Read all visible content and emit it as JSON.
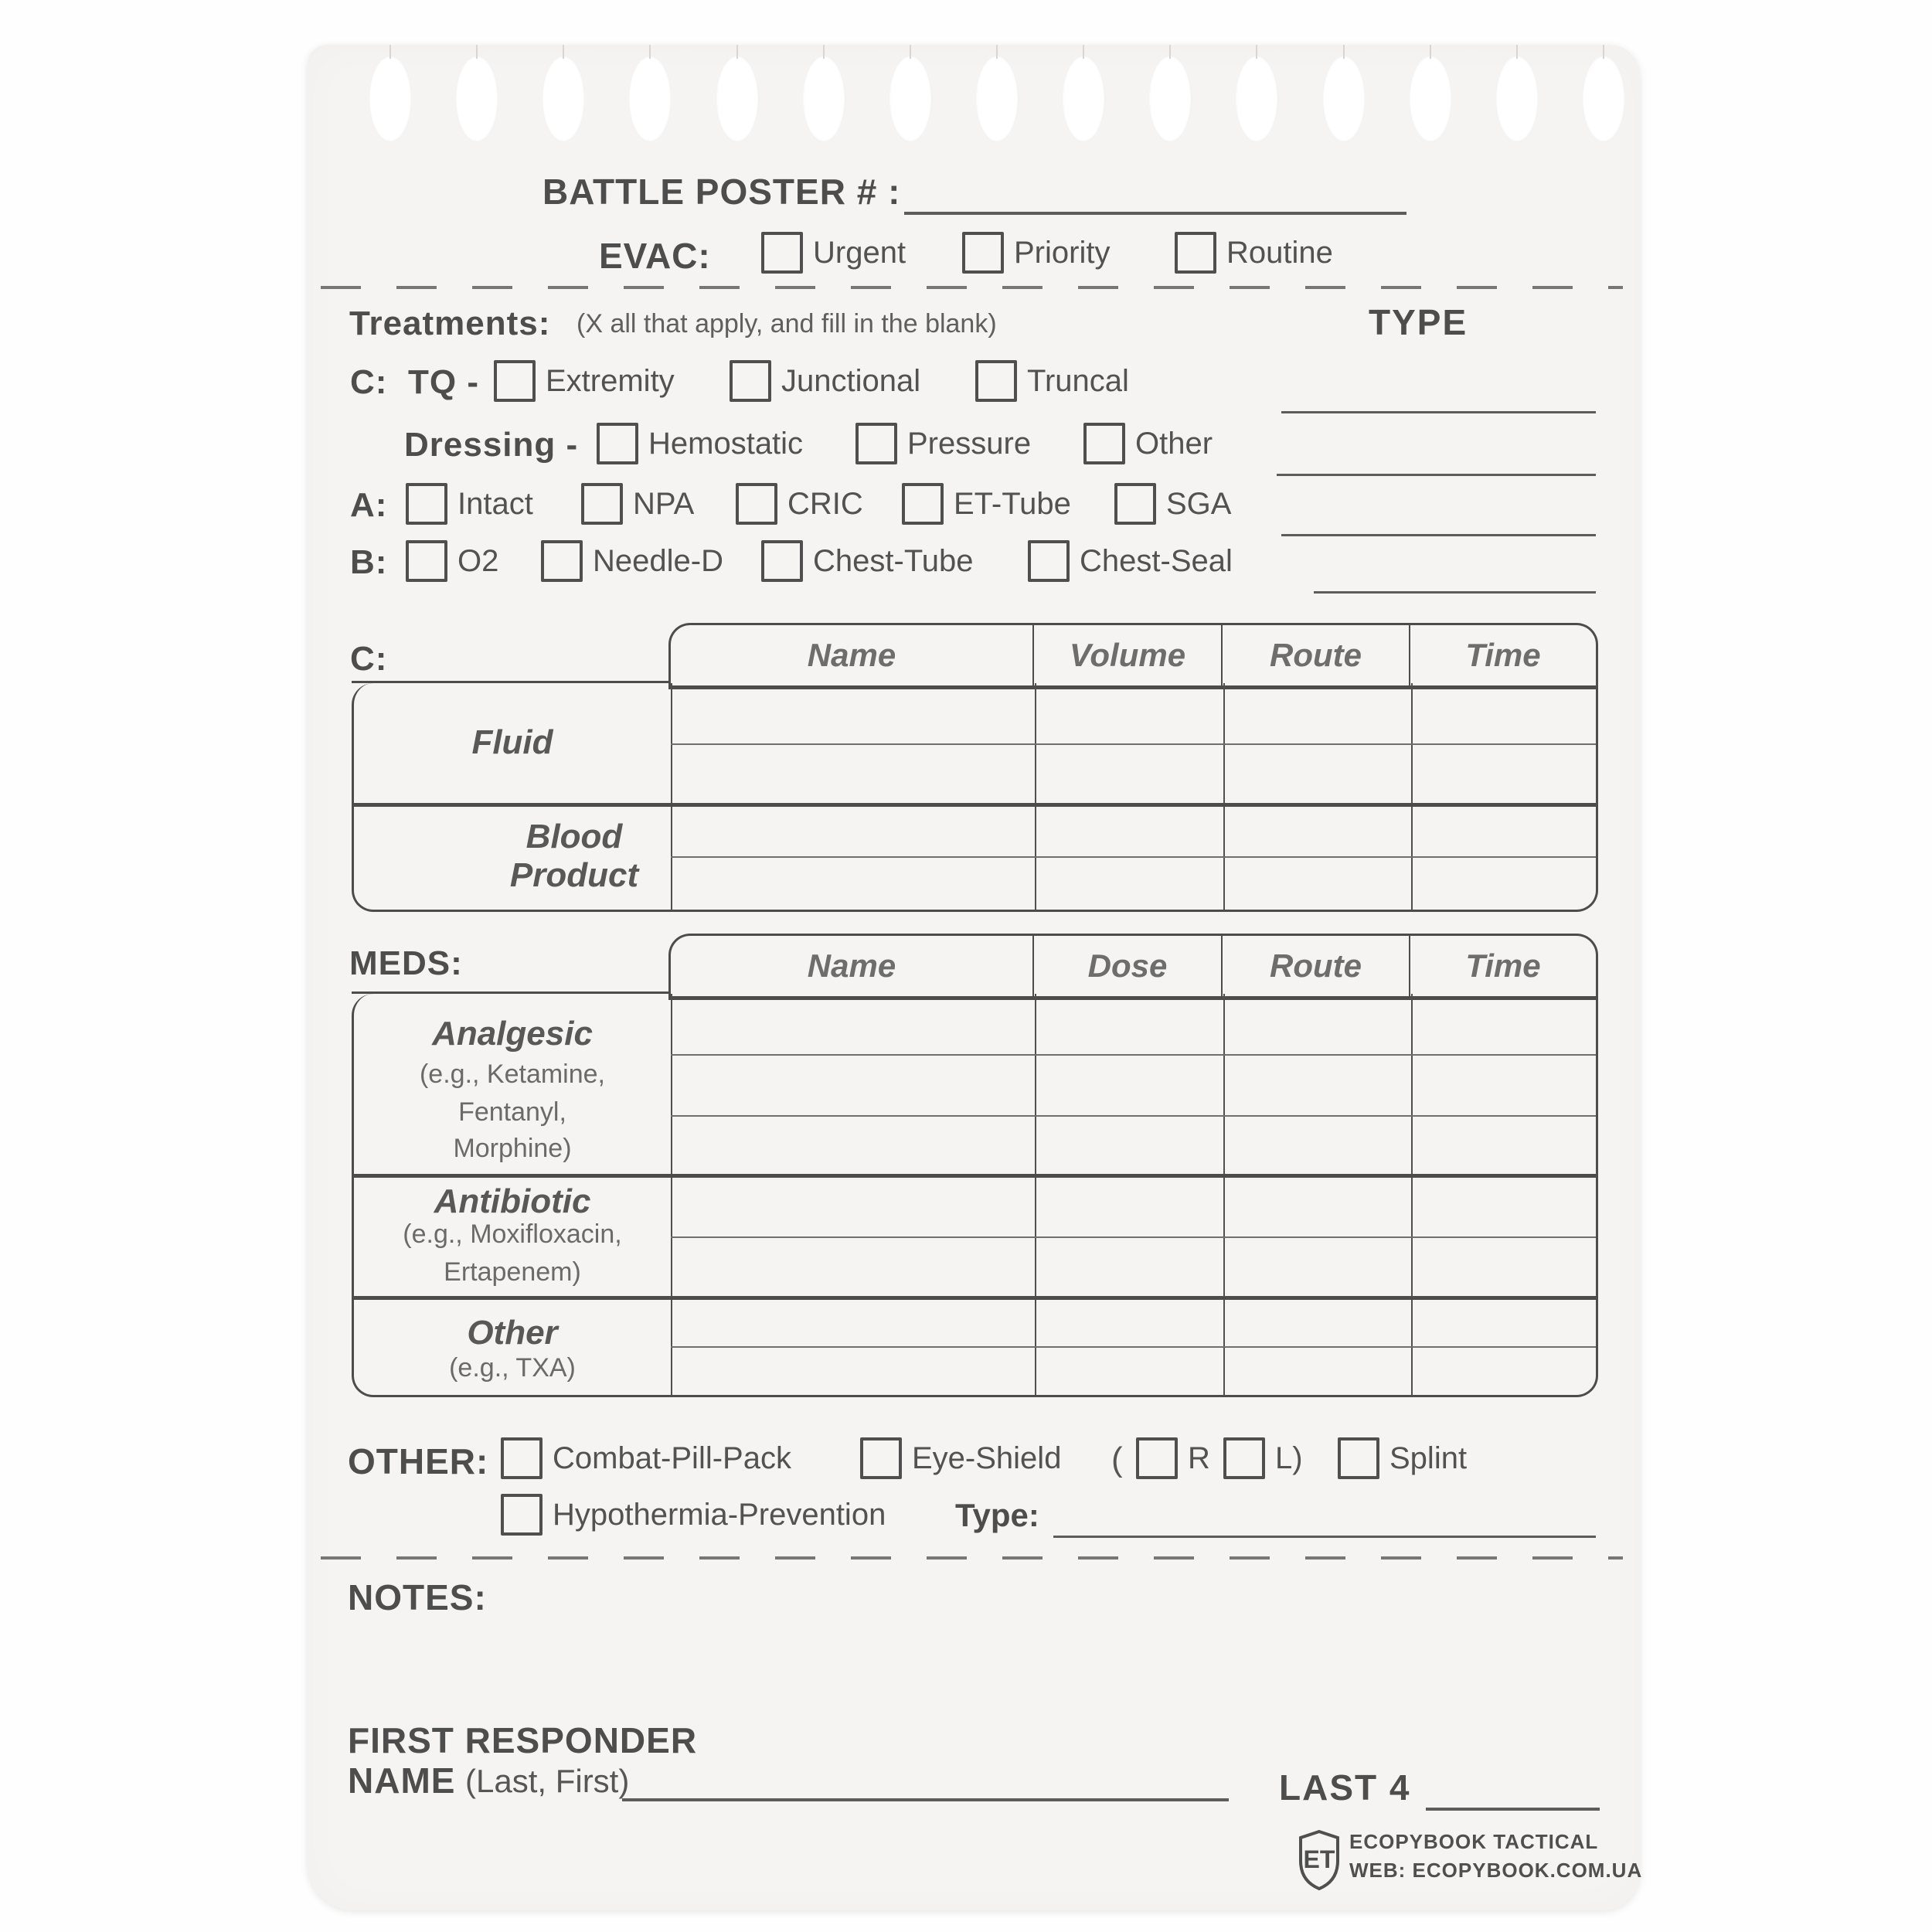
{
  "header": {
    "battle_poster_label": "BATTLE POSTER # :",
    "evac_label": "EVAC:",
    "evac_options": [
      "Urgent",
      "Priority",
      "Routine"
    ]
  },
  "treatments": {
    "label": "Treatments:",
    "hint": "(X all that apply, and fill in the blank)",
    "type_header": "TYPE",
    "tq": {
      "prefix": "C:",
      "label": "TQ -",
      "options": [
        "Extremity",
        "Junctional",
        "Truncal"
      ]
    },
    "dressing": {
      "label": "Dressing -",
      "options": [
        "Hemostatic",
        "Pressure",
        "Other"
      ]
    },
    "airway": {
      "prefix": "A:",
      "options": [
        "Intact",
        "NPA",
        "CRIC",
        "ET-Tube",
        "SGA"
      ]
    },
    "breathing": {
      "prefix": "B:",
      "options": [
        "O2",
        "Needle-D",
        "Chest-Tube",
        "Chest-Seal"
      ]
    }
  },
  "circulation_table": {
    "label": "C:",
    "columns": [
      "Name",
      "Volume",
      "Route",
      "Time"
    ],
    "row_groups": [
      {
        "title": "Fluid",
        "rows": 2
      },
      {
        "title": "Blood Product",
        "rows": 2
      }
    ]
  },
  "meds_table": {
    "label": "MEDS:",
    "columns": [
      "Name",
      "Dose",
      "Route",
      "Time"
    ],
    "row_groups": [
      {
        "title": "Analgesic",
        "examples": [
          "(e.g., Ketamine,",
          "Fentanyl,",
          "Morphine)"
        ],
        "rows": 3
      },
      {
        "title": "Antibiotic",
        "examples": [
          "(e.g., Moxifloxacin,",
          "Ertapenem)"
        ],
        "rows": 2
      },
      {
        "title": "Other",
        "examples": [
          "(e.g., TXA)"
        ],
        "rows": 2
      }
    ]
  },
  "other_section": {
    "label": "OTHER:",
    "options": [
      "Combat-Pill-Pack",
      "Eye-Shield"
    ],
    "paren_open": "(",
    "right_label": "R",
    "left_label": "L)",
    "splint_label": "Splint",
    "hypothermia_label": "Hypothermia-Prevention",
    "type_label": "Type:"
  },
  "notes_label": "NOTES:",
  "footer": {
    "first_responder_label": "FIRST RESPONDER",
    "name_label": "NAME",
    "name_hint": "(Last, First)",
    "last4_label": "LAST 4",
    "logo": {
      "monogram": "ET",
      "line1": "ECOPYBOOK TACTICAL",
      "line2": "WEB: ECOPYBOOK.COM.UA"
    }
  },
  "colors": {
    "paper": "#f5f4f2",
    "ink": "#4e4e4e",
    "ink_light": "#6a6a6a",
    "line": "#5c5c5c"
  }
}
